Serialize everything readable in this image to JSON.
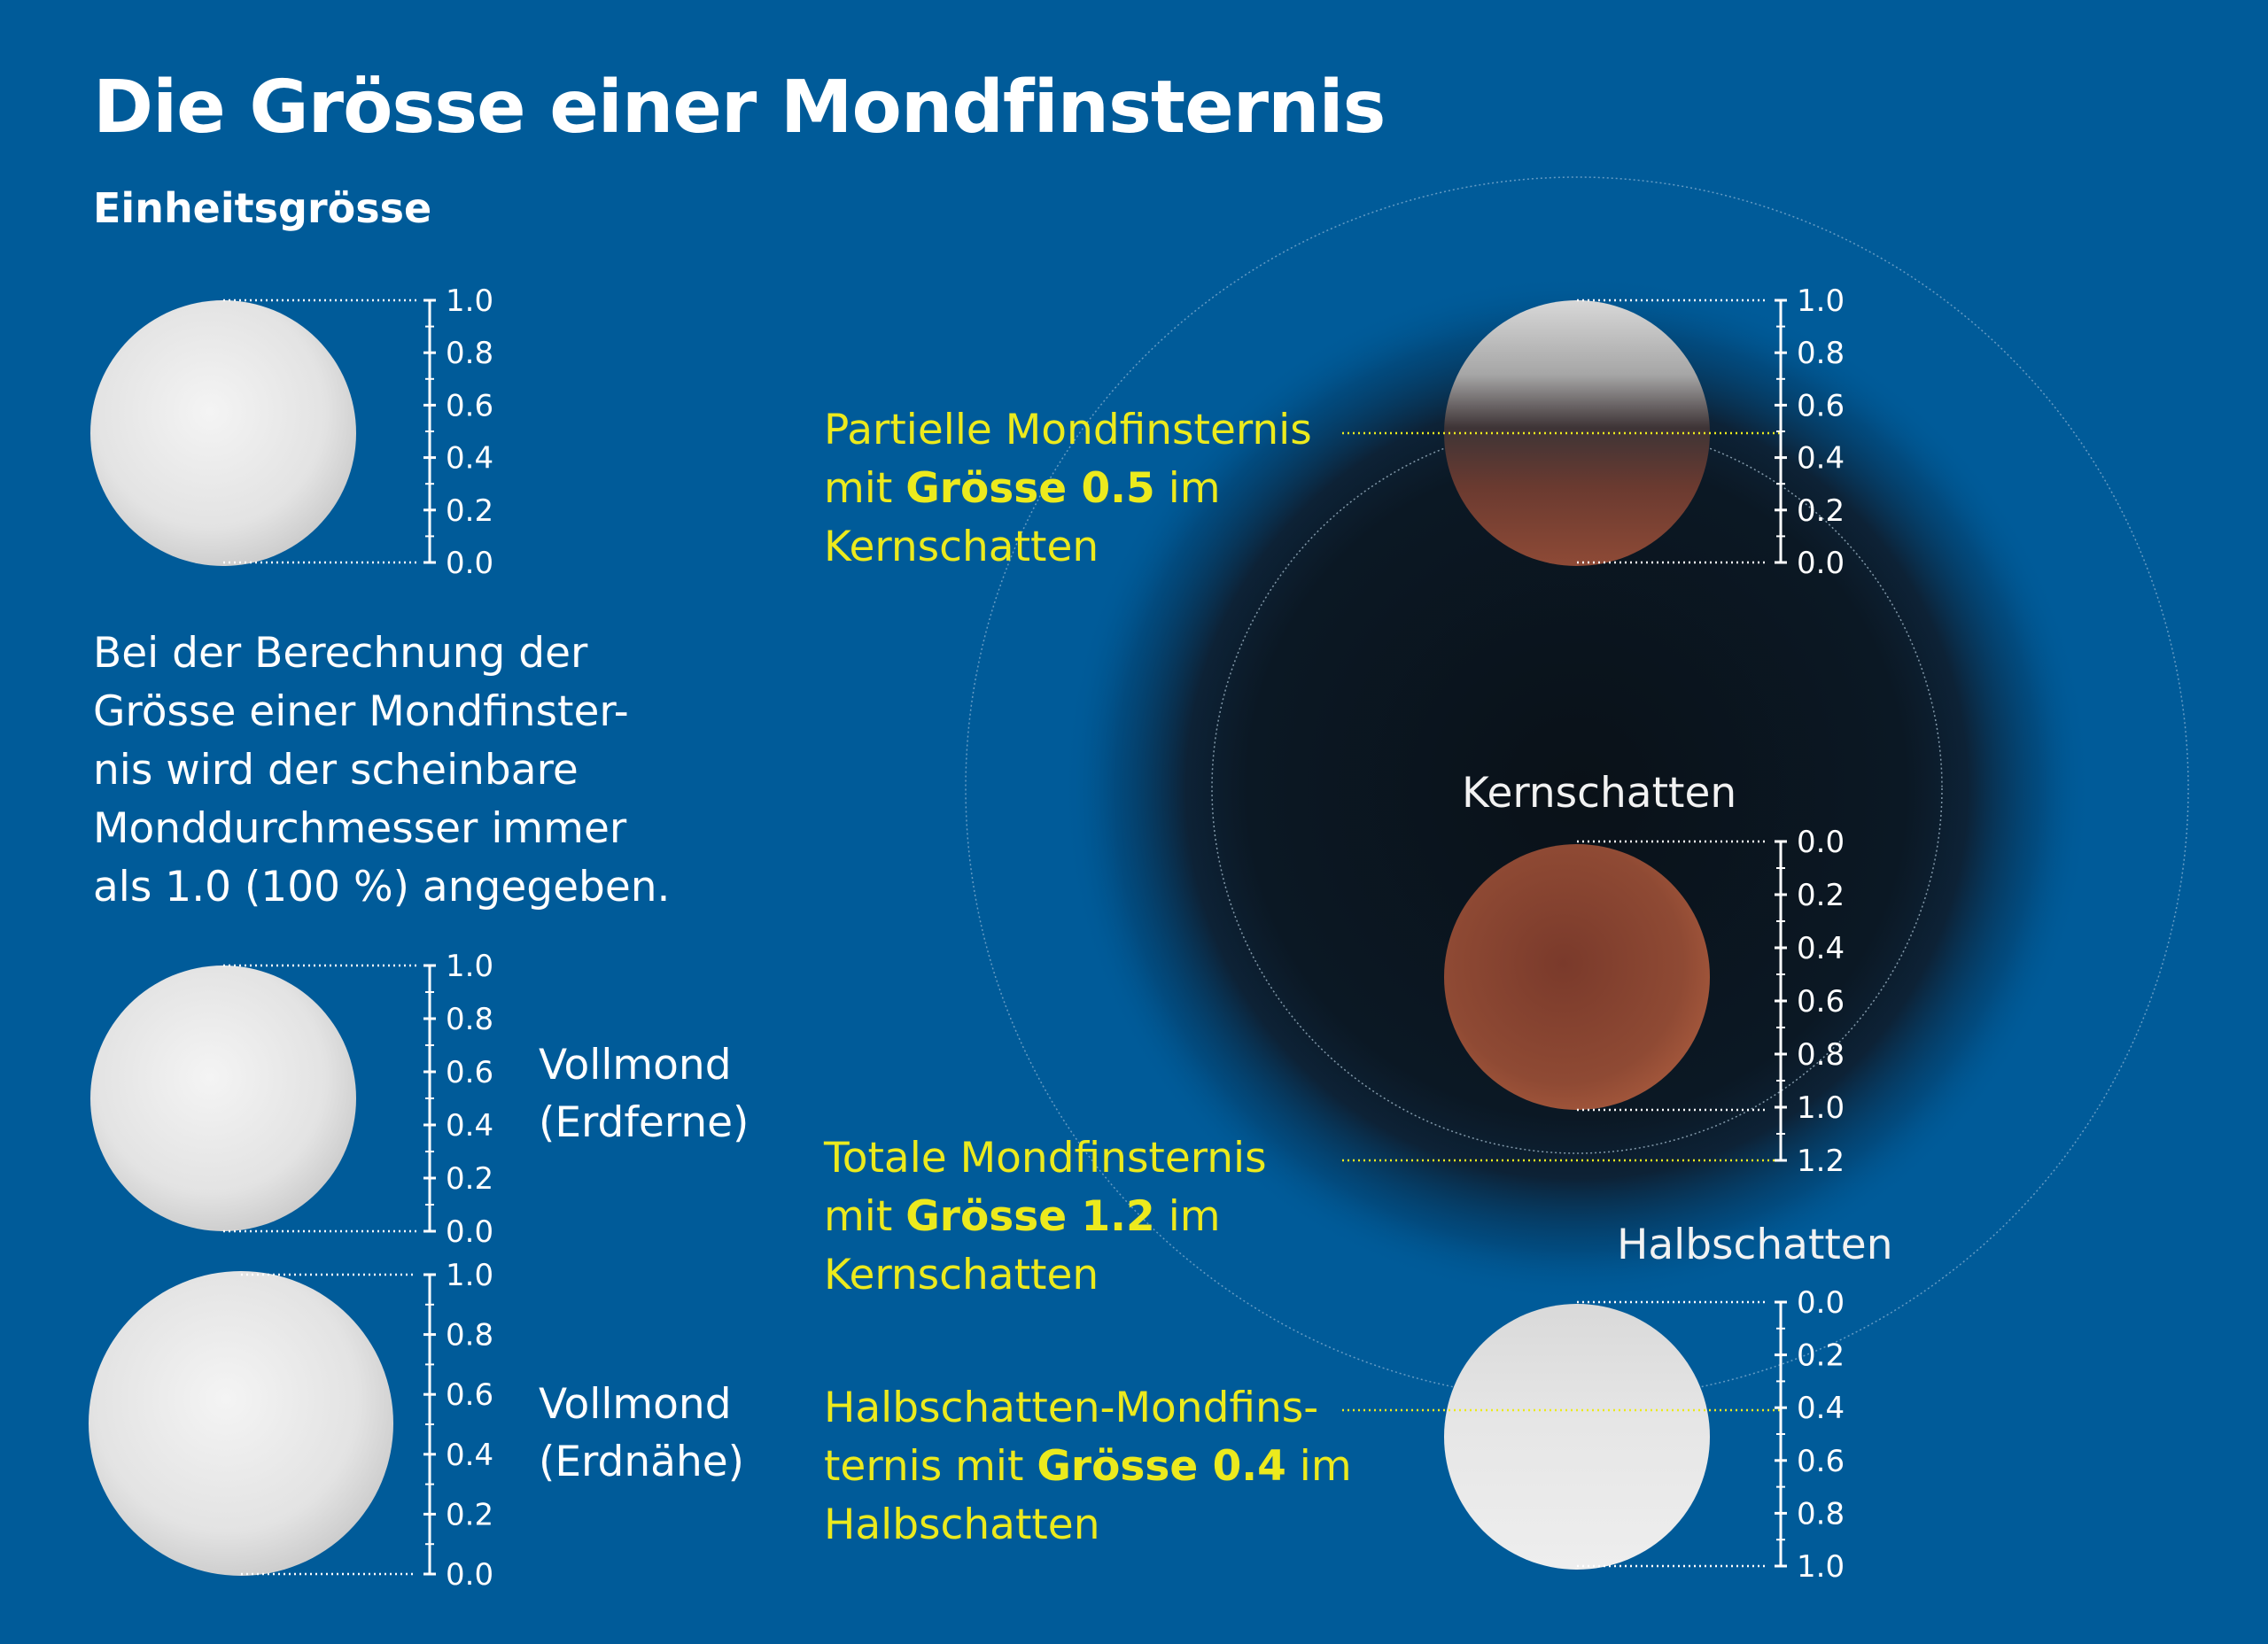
{
  "title": "Die Grösse einer Mondfinsternis",
  "subtitle": "Einheitsgrösse",
  "explanation_lines": [
    "Bei der Berechnung der",
    "Grösse einer Mondfinster-",
    "nis wird der scheinbare",
    "Monddurchmesser immer",
    "als 1.0 (100 %) angegeben."
  ],
  "scale_up": [
    "1.0",
    "0.8",
    "0.6",
    "0.4",
    "0.2",
    "0.0"
  ],
  "scale_down_kern": [
    "0.0",
    "0.2",
    "0.4",
    "0.6",
    "0.8",
    "1.0",
    "1.2"
  ],
  "scale_down_halb": [
    "0.0",
    "0.2",
    "0.4",
    "0.6",
    "0.8",
    "1.0"
  ],
  "moons": {
    "apogee": {
      "line1": "Vollmond",
      "line2": "(Erdferne)"
    },
    "perigee": {
      "line1": "Vollmond",
      "line2": "(Erdnähe)"
    }
  },
  "eclipses": {
    "partial": {
      "line1": "Partielle Mondfinsternis",
      "line2_pre": "mit",
      "line2_bold": "Grösse 0.5",
      "line2_post": "im",
      "line3": "Kernschatten",
      "magnitude": 0.5
    },
    "total": {
      "line1": "Totale Mondfinsternis",
      "line2_pre": "mit",
      "line2_bold": "Grösse 1.2",
      "line2_post": "im",
      "line3": "Kernschatten",
      "magnitude": 1.2
    },
    "penumbral": {
      "line1": "Halbschatten-Mondfins-",
      "line2_pre": "ternis mit",
      "line2_bold": "Grösse 0.4",
      "line2_post": "im",
      "line3": "Halbschatten",
      "magnitude": 0.4
    }
  },
  "zones": {
    "umbra": "Kernschatten",
    "penumbra": "Halbschatten"
  },
  "colors": {
    "background": "#005b99",
    "highlight": "#ecea1d",
    "umbra": "#0b1420",
    "eclipsed_moon": "#8a4330"
  }
}
